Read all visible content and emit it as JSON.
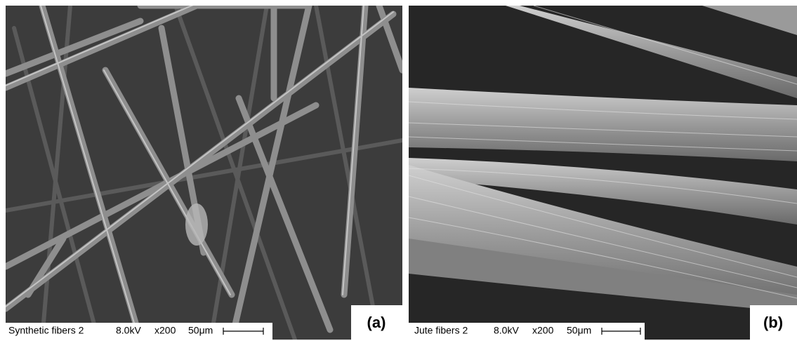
{
  "panels": [
    {
      "caption": {
        "sample": "Synthetic fibers 2",
        "voltage": "8.0kV",
        "magnification": "x200",
        "scale": "50μm"
      },
      "label": "(a)"
    },
    {
      "caption": {
        "sample": "Jute fibers 2",
        "voltage": "8.0kV",
        "magnification": "x200",
        "scale": "50μm"
      },
      "label": "(b)"
    }
  ]
}
